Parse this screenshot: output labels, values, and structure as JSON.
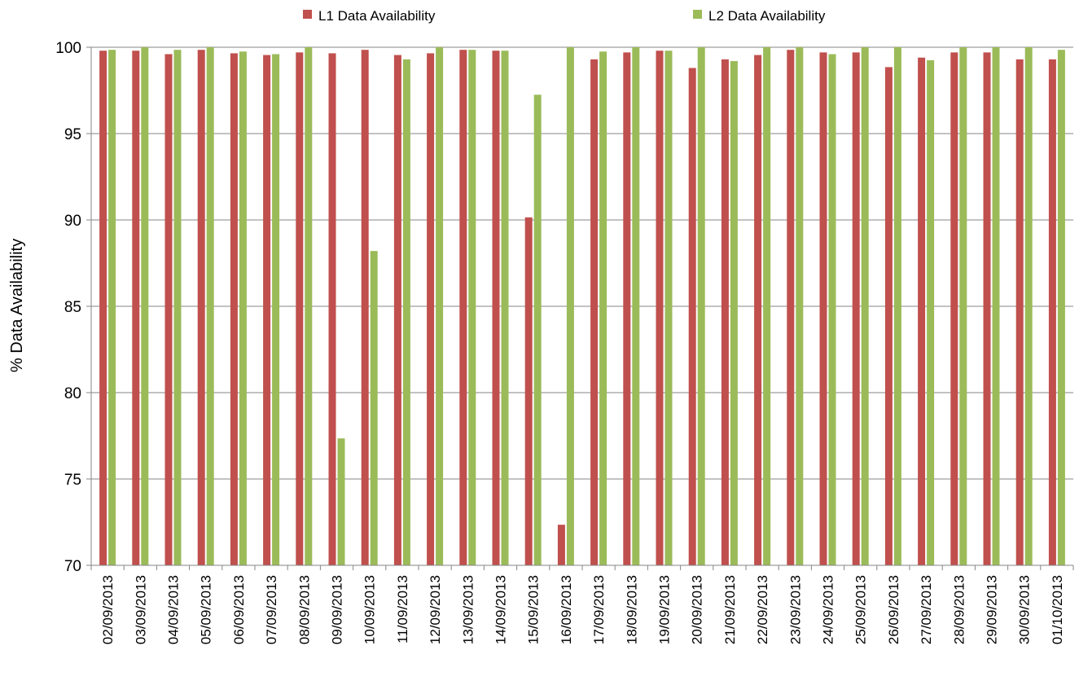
{
  "chart_data": {
    "type": "bar",
    "xlabel": "",
    "ylabel": "% Data Availability",
    "ylim": [
      70,
      100
    ],
    "yticks": [
      70,
      75,
      80,
      85,
      90,
      95,
      100
    ],
    "grid": "horizontal",
    "legend_position": "top",
    "categories": [
      "02/09/2013",
      "03/09/2013",
      "04/09/2013",
      "05/09/2013",
      "06/09/2013",
      "07/09/2013",
      "08/09/2013",
      "09/09/2013",
      "10/09/2013",
      "11/09/2013",
      "12/09/2013",
      "13/09/2013",
      "14/09/2013",
      "15/09/2013",
      "16/09/2013",
      "17/09/2013",
      "18/09/2013",
      "19/09/2013",
      "20/09/2013",
      "21/09/2013",
      "22/09/2013",
      "23/09/2013",
      "24/09/2013",
      "25/09/2013",
      "26/09/2013",
      "27/09/2013",
      "28/09/2013",
      "29/09/2013",
      "30/09/2013",
      "01/10/2013"
    ],
    "series": [
      {
        "name": "L1 Data Availability",
        "color": "#c0504d",
        "values": [
          99.8,
          99.8,
          99.6,
          99.85,
          99.65,
          99.55,
          99.7,
          99.65,
          99.85,
          99.55,
          99.65,
          99.85,
          99.8,
          90.15,
          72.35,
          99.3,
          99.7,
          99.8,
          98.8,
          99.3,
          99.55,
          99.85,
          99.7,
          99.7,
          98.85,
          99.4,
          99.7,
          99.7,
          99.3,
          99.3
        ]
      },
      {
        "name": "L2 Data Availability",
        "color": "#9bbb59",
        "values": [
          99.85,
          100,
          99.85,
          100,
          99.75,
          99.6,
          100,
          77.35,
          88.2,
          99.3,
          100,
          99.85,
          99.8,
          97.25,
          100,
          99.75,
          100,
          99.8,
          100,
          99.2,
          100,
          100,
          99.6,
          100,
          100,
          99.25,
          100,
          100,
          100,
          99.85
        ]
      }
    ]
  }
}
